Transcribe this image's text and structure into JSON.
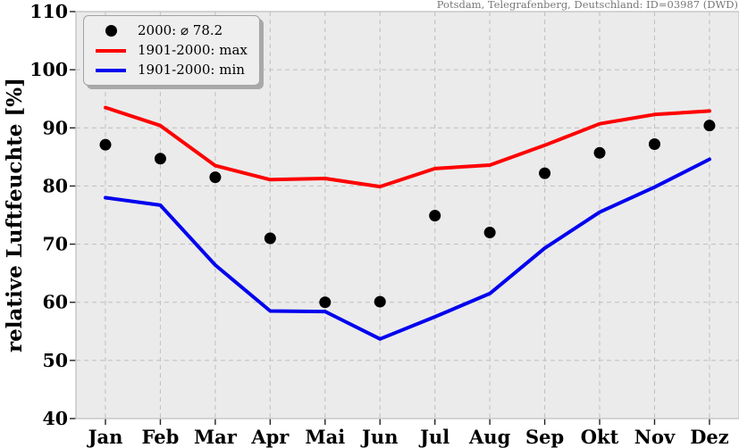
{
  "header": {
    "station": "Potsdam, Telegrafenberg, Deutschland: ID=03987 (DWD)"
  },
  "chart_data": {
    "type": "line",
    "title": "",
    "xlabel": "",
    "ylabel": "relative Luftfeuchte [%]",
    "categories": [
      "Jan",
      "Feb",
      "Mar",
      "Apr",
      "Mai",
      "Jun",
      "Jul",
      "Aug",
      "Sep",
      "Okt",
      "Nov",
      "Dez"
    ],
    "ylim": [
      40,
      110
    ],
    "yticks": [
      110,
      100,
      90,
      80,
      70,
      60,
      50,
      40
    ],
    "grid": true,
    "grid_style": "dashed",
    "legend_position": "upper-left",
    "series": [
      {
        "name": "2000: ⌀ 78.2",
        "style": "scatter",
        "marker": "dot",
        "color": "#000000",
        "values": [
          87.1,
          84.7,
          81.5,
          71.0,
          60.0,
          60.1,
          74.9,
          72.0,
          82.2,
          85.7,
          87.2,
          90.4
        ]
      },
      {
        "name": "1901-2000: max",
        "style": "line",
        "marker": "line",
        "color": "#ff0000",
        "values": [
          93.5,
          90.4,
          83.5,
          81.1,
          81.3,
          79.9,
          83.0,
          83.6,
          87.0,
          90.7,
          92.3,
          92.9
        ]
      },
      {
        "name": "1901-2000: min",
        "style": "line",
        "marker": "line",
        "color": "#0000ee",
        "values": [
          78.0,
          76.7,
          66.4,
          58.5,
          58.4,
          53.7,
          57.5,
          61.5,
          69.3,
          75.5,
          79.8,
          84.6
        ]
      }
    ]
  },
  "colors": {
    "plot_bg": "#ebebeb",
    "grid": "#c3c3c3",
    "spine": "#c8c8c8",
    "tick": "#222222",
    "tick_label": "#000000",
    "station_text": "#787878"
  }
}
